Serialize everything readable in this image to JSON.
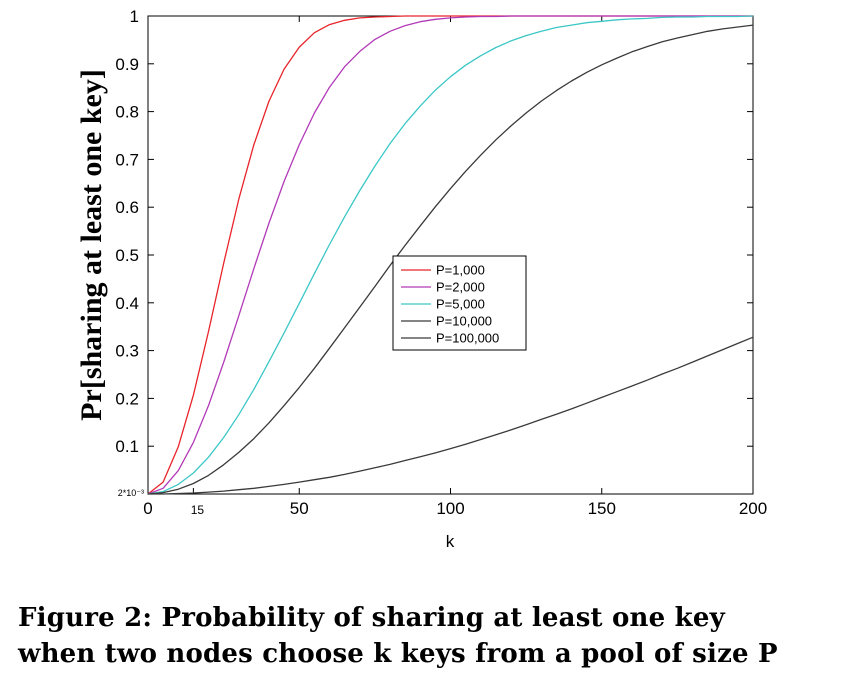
{
  "chart_data": {
    "type": "line",
    "title": "",
    "xlabel": "k",
    "ylabel": "Pr[sharing at least one key]",
    "xlim": [
      0,
      200
    ],
    "ylim": [
      0,
      1
    ],
    "x_ticks": [
      0,
      50,
      100,
      150,
      200
    ],
    "x_ticks_extra": [
      15
    ],
    "y_ticks": [
      0.1,
      0.2,
      0.3,
      0.4,
      0.5,
      0.6,
      0.7,
      0.8,
      0.9,
      1
    ],
    "y_ticks_extra": [
      {
        "value": 0.002,
        "label": "2*10⁻³"
      }
    ],
    "grid": false,
    "legend_position": "center",
    "x": [
      0,
      5,
      10,
      15,
      20,
      25,
      30,
      35,
      40,
      45,
      50,
      55,
      60,
      65,
      70,
      75,
      80,
      85,
      90,
      95,
      100,
      105,
      110,
      115,
      120,
      125,
      130,
      135,
      140,
      145,
      150,
      155,
      160,
      165,
      170,
      175,
      180,
      185,
      190,
      195,
      200
    ],
    "series": [
      {
        "name": "P=1,000",
        "color": "#e8242a",
        "values": [
          0,
          0.025,
          0.099,
          0.207,
          0.34,
          0.482,
          0.617,
          0.731,
          0.822,
          0.889,
          0.935,
          0.965,
          0.982,
          0.991,
          0.996,
          0.998,
          0.999,
          1,
          1,
          1,
          1,
          1,
          1,
          1,
          1,
          1,
          1,
          1,
          1,
          1,
          1,
          1,
          1,
          1,
          1,
          1,
          1,
          1,
          1,
          1,
          1
        ]
      },
      {
        "name": "P=2,000",
        "color": "#b23ab8",
        "values": [
          0,
          0.012,
          0.049,
          0.108,
          0.185,
          0.275,
          0.373,
          0.472,
          0.567,
          0.654,
          0.731,
          0.797,
          0.851,
          0.894,
          0.926,
          0.951,
          0.968,
          0.98,
          0.988,
          0.993,
          0.996,
          0.998,
          0.999,
          0.999,
          1,
          1,
          1,
          1,
          1,
          1,
          1,
          1,
          1,
          1,
          1,
          1,
          1,
          1,
          1,
          1,
          1
        ]
      },
      {
        "name": "P=5,000",
        "color": "#3cc7c7",
        "values": [
          0,
          0.005,
          0.02,
          0.044,
          0.077,
          0.118,
          0.166,
          0.219,
          0.277,
          0.337,
          0.399,
          0.461,
          0.522,
          0.58,
          0.635,
          0.686,
          0.733,
          0.775,
          0.812,
          0.845,
          0.873,
          0.897,
          0.917,
          0.934,
          0.948,
          0.959,
          0.968,
          0.976,
          0.981,
          0.986,
          0.989,
          0.992,
          0.994,
          0.995,
          0.997,
          0.998,
          0.998,
          0.999,
          0.999,
          0.999,
          1
        ]
      },
      {
        "name": "P=10,000",
        "color": "#3a3a3a",
        "values": [
          0,
          0.003,
          0.01,
          0.022,
          0.039,
          0.061,
          0.087,
          0.116,
          0.149,
          0.185,
          0.223,
          0.263,
          0.305,
          0.348,
          0.391,
          0.434,
          0.478,
          0.52,
          0.561,
          0.601,
          0.639,
          0.675,
          0.709,
          0.741,
          0.77,
          0.797,
          0.822,
          0.844,
          0.864,
          0.882,
          0.898,
          0.912,
          0.925,
          0.936,
          0.946,
          0.954,
          0.961,
          0.968,
          0.973,
          0.977,
          0.981
        ]
      },
      {
        "name": "P=100,000",
        "color": "#3a3a3a",
        "values": [
          0,
          0,
          0.001,
          0.002,
          0.004,
          0.006,
          0.009,
          0.012,
          0.016,
          0.02,
          0.025,
          0.03,
          0.035,
          0.041,
          0.048,
          0.055,
          0.062,
          0.07,
          0.078,
          0.086,
          0.095,
          0.104,
          0.114,
          0.124,
          0.134,
          0.145,
          0.156,
          0.167,
          0.178,
          0.19,
          0.202,
          0.214,
          0.226,
          0.238,
          0.251,
          0.263,
          0.276,
          0.289,
          0.302,
          0.315,
          0.328
        ]
      }
    ]
  },
  "caption": {
    "line1": "Figure 2:  Probability of sharing at least one key",
    "line2": "when two nodes choose k keys from a pool of size P"
  }
}
